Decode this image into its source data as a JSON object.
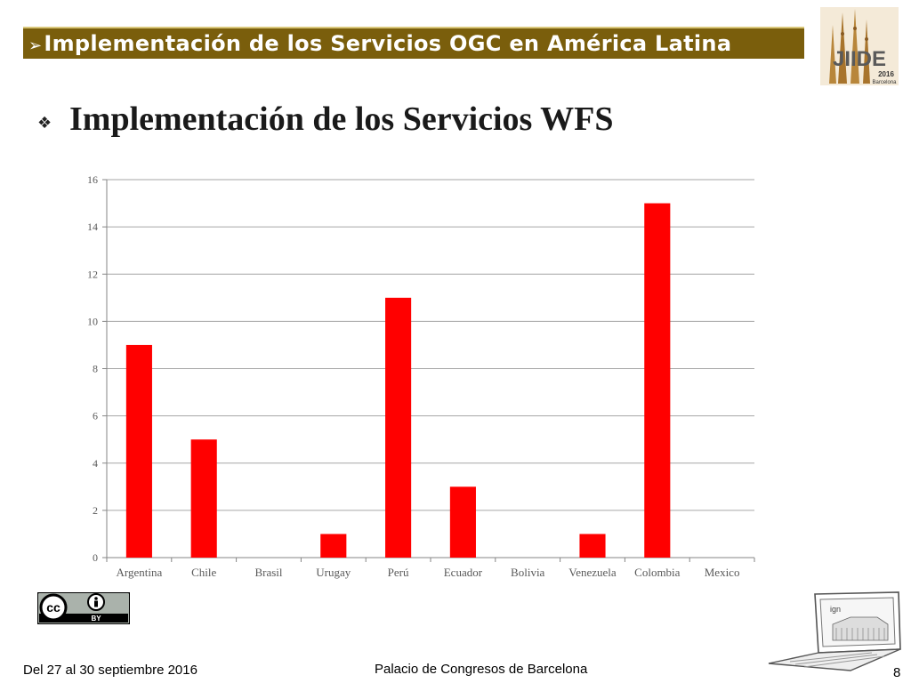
{
  "header": {
    "arrow": "➢",
    "title": "Implementación de los Servicios OGC en América Latina"
  },
  "logo": {
    "icon": "jiide-logo",
    "text": "JIIDE",
    "year": "2016",
    "city": "Barcelona"
  },
  "heading": {
    "bullet": "❖",
    "text": "Implementación de los Servicios WFS"
  },
  "chart_data": {
    "type": "bar",
    "categories": [
      "Argentina",
      "Chile",
      "Brasil",
      "Urugay",
      "Perú",
      "Ecuador",
      "Bolivia",
      "Venezuela",
      "Colombia",
      "Mexico"
    ],
    "values": [
      9,
      5,
      0,
      1,
      11,
      3,
      0,
      1,
      15,
      0
    ],
    "ylim": [
      0,
      16
    ],
    "yticks": [
      0,
      2,
      4,
      6,
      8,
      10,
      12,
      14,
      16
    ],
    "grid": true,
    "bar_color": "#ff0000",
    "grid_color": "#a6a6a6"
  },
  "license_badge": {
    "icon": "creative-commons-by-icon",
    "cc_text": "cc",
    "by_text": "BY"
  },
  "footer": {
    "dates": "Del 27 al 30 septiembre 2016",
    "venue": "Palacio de Congresos de Barcelona",
    "page": "8"
  },
  "laptop_logo": {
    "icon": "ign-laptop-icon",
    "text": "ign"
  }
}
